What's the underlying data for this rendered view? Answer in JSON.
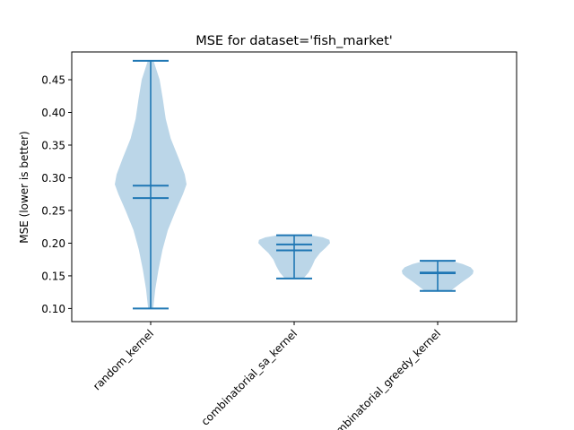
{
  "chart_data": {
    "type": "violin",
    "title": "MSE for dataset='fish_market'",
    "xlabel": "",
    "ylabel": "MSE (lower is better)",
    "ylim": [
      0.08,
      0.4925
    ],
    "yticks": [
      "0.10",
      "0.15",
      "0.20",
      "0.25",
      "0.30",
      "0.35",
      "0.40",
      "0.45"
    ],
    "yticks_values": [
      0.1,
      0.15,
      0.2,
      0.25,
      0.3,
      0.35,
      0.4,
      0.45
    ],
    "grid": false,
    "legend": "none",
    "colors": {
      "body": "#1f77b4",
      "body_alpha": 0.3,
      "line": "#1f77b4"
    },
    "categories": [
      "random_kernel",
      "combinatorial_sa_kernel",
      "combinatorial_greedy_kernel"
    ],
    "series": [
      {
        "min": 0.1,
        "max": 0.479,
        "mean": 0.288,
        "median": 0.269,
        "density_y": [
          0.1,
          0.13,
          0.16,
          0.19,
          0.22,
          0.25,
          0.275,
          0.29,
          0.305,
          0.33,
          0.36,
          0.39,
          0.42,
          0.45,
          0.479
        ],
        "density_width": [
          0.07,
          0.13,
          0.22,
          0.33,
          0.48,
          0.7,
          0.9,
          1.0,
          0.95,
          0.78,
          0.56,
          0.42,
          0.34,
          0.25,
          0.08
        ]
      },
      {
        "min": 0.146,
        "max": 0.212,
        "mean": 0.189,
        "median": 0.198,
        "density_y": [
          0.146,
          0.155,
          0.165,
          0.175,
          0.185,
          0.193,
          0.2,
          0.205,
          0.209,
          0.212
        ],
        "density_width": [
          0.26,
          0.4,
          0.5,
          0.58,
          0.72,
          0.88,
          1.0,
          0.98,
          0.8,
          0.48
        ]
      },
      {
        "min": 0.127,
        "max": 0.173,
        "mean": 0.154,
        "median": 0.155,
        "density_y": [
          0.127,
          0.135,
          0.142,
          0.148,
          0.153,
          0.158,
          0.163,
          0.168,
          0.173
        ],
        "density_width": [
          0.36,
          0.55,
          0.72,
          0.88,
          0.98,
          1.0,
          0.92,
          0.7,
          0.36
        ]
      }
    ]
  }
}
